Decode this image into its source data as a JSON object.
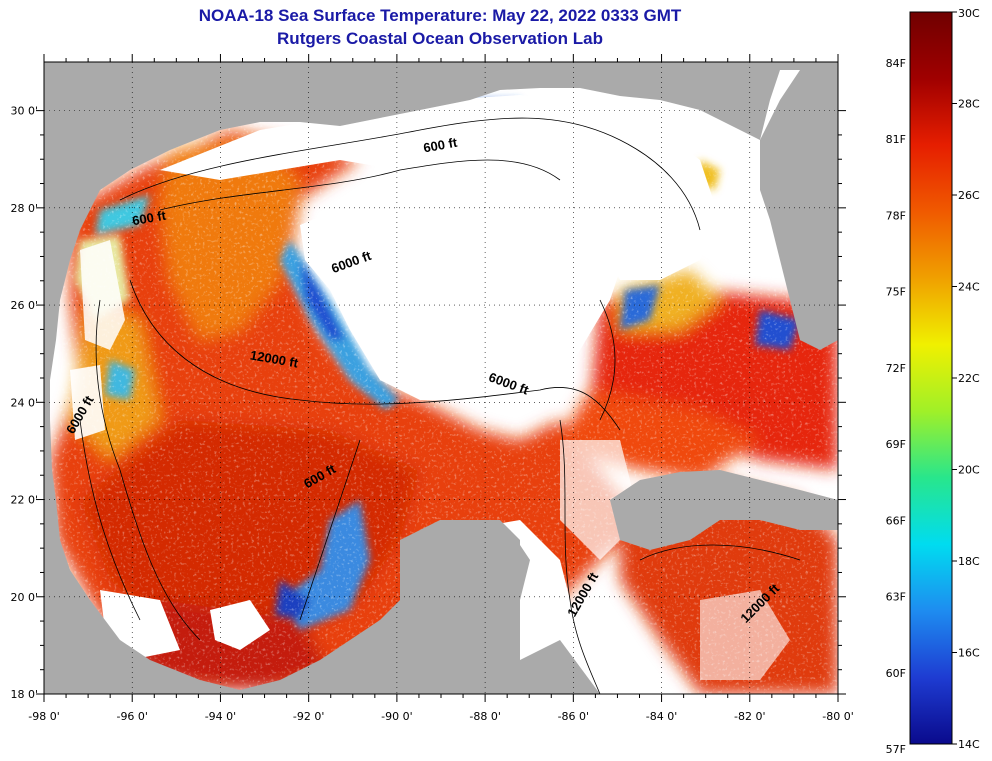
{
  "title": {
    "line1": "NOAA-18 Sea Surface Temperature:  May 22, 2022 0333 GMT",
    "line2": "Rutgers Coastal Ocean Observation Lab"
  },
  "map": {
    "lon_range": [
      -98,
      -80
    ],
    "lat_range": [
      18,
      31
    ],
    "land_color": "#aaaaaa",
    "cloud_color": "#ffffff",
    "x_ticks": [
      {
        "lon": -98,
        "label": "-98 0'"
      },
      {
        "lon": -96,
        "label": "-96 0'"
      },
      {
        "lon": -94,
        "label": "-94 0'"
      },
      {
        "lon": -92,
        "label": "-92 0'"
      },
      {
        "lon": -90,
        "label": "-90 0'"
      },
      {
        "lon": -88,
        "label": "-88 0'"
      },
      {
        "lon": -86,
        "label": "-86 0'"
      },
      {
        "lon": -84,
        "label": "-84 0'"
      },
      {
        "lon": -82,
        "label": "-82 0'"
      },
      {
        "lon": -80,
        "label": "-80 0'"
      }
    ],
    "y_ticks": [
      {
        "lat": 30,
        "label": "30 0'"
      },
      {
        "lat": 28,
        "label": "28 0'"
      },
      {
        "lat": 26,
        "label": "26 0'"
      },
      {
        "lat": 24,
        "label": "24 0'"
      },
      {
        "lat": 22,
        "label": "22 0'"
      },
      {
        "lat": 20,
        "label": "20 0'"
      },
      {
        "lat": 18,
        "label": "18 0'"
      }
    ],
    "contour_labels": [
      {
        "text": "600 ft",
        "lon": -89.0,
        "lat": 29.2,
        "angle": -10
      },
      {
        "text": "600 ft",
        "lon": -95.6,
        "lat": 27.7,
        "angle": -10
      },
      {
        "text": "6000 ft",
        "lon": -91.0,
        "lat": 26.8,
        "angle": -20
      },
      {
        "text": "12000 ft",
        "lon": -92.8,
        "lat": 24.8,
        "angle": 10
      },
      {
        "text": "6000 ft",
        "lon": -97.1,
        "lat": 23.7,
        "angle": -60
      },
      {
        "text": "6000 ft",
        "lon": -87.5,
        "lat": 24.3,
        "angle": 20
      },
      {
        "text": "600 ft",
        "lon": -91.7,
        "lat": 22.4,
        "angle": -30
      },
      {
        "text": "12000 ft",
        "lon": -85.7,
        "lat": 20.0,
        "angle": -60
      },
      {
        "text": "12000 ft",
        "lon": -81.7,
        "lat": 19.8,
        "angle": -45
      }
    ]
  },
  "colorbar": {
    "stops": [
      "#0a0a8c",
      "#1e3cd2",
      "#1e8cf0",
      "#00dcf0",
      "#28e68c",
      "#a0f028",
      "#f0f000",
      "#f0a000",
      "#f05a00",
      "#e61e00",
      "#a00000",
      "#700000"
    ],
    "fahrenheit_labels": [
      {
        "value": 84,
        "label": "84F"
      },
      {
        "value": 81,
        "label": "81F"
      },
      {
        "value": 78,
        "label": "78F"
      },
      {
        "value": 75,
        "label": "75F"
      },
      {
        "value": 72,
        "label": "72F"
      },
      {
        "value": 69,
        "label": "69F"
      },
      {
        "value": 66,
        "label": "66F"
      },
      {
        "value": 63,
        "label": "63F"
      },
      {
        "value": 60,
        "label": "60F"
      },
      {
        "value": 57,
        "label": "57F"
      }
    ],
    "celsius_labels": [
      {
        "value": 30,
        "label": "30C"
      },
      {
        "value": 28,
        "label": "28C"
      },
      {
        "value": 26,
        "label": "26C"
      },
      {
        "value": 24,
        "label": "24C"
      },
      {
        "value": 22,
        "label": "22C"
      },
      {
        "value": 20,
        "label": "20C"
      },
      {
        "value": 18,
        "label": "18C"
      },
      {
        "value": 16,
        "label": "16C"
      },
      {
        "value": 14,
        "label": "14C"
      }
    ]
  }
}
